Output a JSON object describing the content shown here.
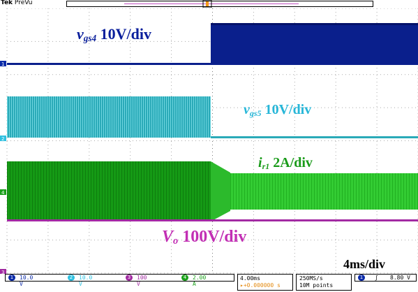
{
  "header": {
    "brand": "Tek",
    "mode": "PreVu"
  },
  "labels": {
    "vgs4": {
      "sym": "v",
      "sub": "gs4",
      "scale": "10V/div",
      "color": "#0a1f9c"
    },
    "vgs5": {
      "sym": "v",
      "sub": "gs5",
      "scale": "10V/div",
      "color": "#26b6d8"
    },
    "ir1": {
      "sym": "i",
      "sub": "r1",
      "scale": "2A/div",
      "color": "#1a9b1a"
    },
    "vo": {
      "sym": "V",
      "sub": "o",
      "scale": "100V/div",
      "color": "#c22fb4"
    },
    "timebase": "4ms/div"
  },
  "channels": [
    {
      "num": "1",
      "scale": "10.0 V",
      "color": "#0a2aa8"
    },
    {
      "num": "2",
      "scale": "10.0 V",
      "color": "#2fc0e0"
    },
    {
      "num": "3",
      "scale": "100 V",
      "color": "#a02aa0"
    },
    {
      "num": "4",
      "scale": "2.00 A",
      "color": "#1aa01a"
    }
  ],
  "horizontal": {
    "scale": "4.00ms",
    "position": "▸+0.000000 s"
  },
  "acquisition": {
    "rate": "250MS/s",
    "points": "10M points"
  },
  "trigger": {
    "source": "1",
    "slope": "ʃ",
    "level": "8.80 V"
  },
  "colors": {
    "ch1": "#0a1f8c",
    "ch2": "#2aaab8",
    "ch3": "#a32aa3",
    "ch4": "#159a15",
    "ch4_light": "#33cc33",
    "grid": "#9a9a9a"
  }
}
